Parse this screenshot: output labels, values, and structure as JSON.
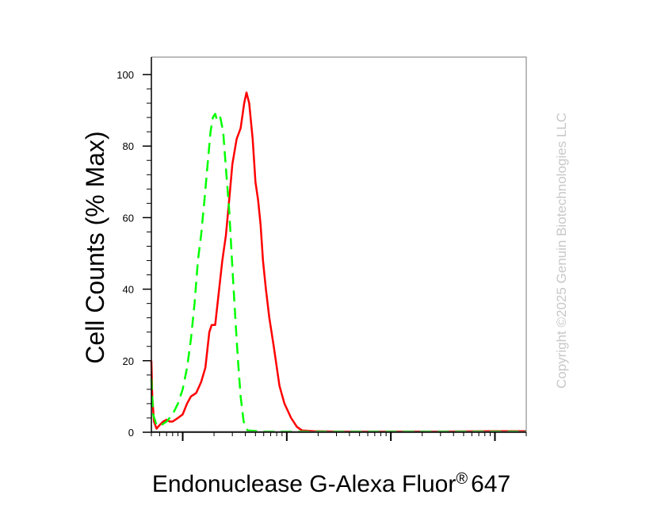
{
  "chart_data": {
    "type": "line",
    "xlabel": "Endonuclease G-Alexa Fluor",
    "xlabel_superscript": "®",
    "xlabel_suffix": "647",
    "ylabel": "Cell Counts (% Max)",
    "ylim": [
      0,
      100
    ],
    "yticks": [
      "0",
      "20",
      "40",
      "60",
      "80",
      "100"
    ],
    "xscale": "log",
    "xlim": [
      0.5,
      2000
    ],
    "grid": false,
    "series": [
      {
        "color": "#ff0000",
        "style": "solid",
        "points": [
          [
            0.5,
            20
          ],
          [
            0.51,
            10
          ],
          [
            0.53,
            3
          ],
          [
            0.56,
            1
          ],
          [
            0.6,
            2
          ],
          [
            0.65,
            3
          ],
          [
            0.7,
            3.5
          ],
          [
            0.75,
            3
          ],
          [
            0.8,
            3
          ],
          [
            0.85,
            3.5
          ],
          [
            0.9,
            4
          ],
          [
            1.0,
            5
          ],
          [
            1.1,
            8
          ],
          [
            1.2,
            10
          ],
          [
            1.35,
            11
          ],
          [
            1.5,
            14
          ],
          [
            1.65,
            18
          ],
          [
            1.8,
            28
          ],
          [
            1.9,
            30
          ],
          [
            2.05,
            30
          ],
          [
            2.2,
            38
          ],
          [
            2.4,
            48
          ],
          [
            2.6,
            55
          ],
          [
            2.8,
            65
          ],
          [
            3.0,
            75
          ],
          [
            3.3,
            82
          ],
          [
            3.6,
            85
          ],
          [
            3.9,
            92
          ],
          [
            4.1,
            95
          ],
          [
            4.35,
            92
          ],
          [
            4.7,
            82
          ],
          [
            5.0,
            70
          ],
          [
            5.3,
            65
          ],
          [
            5.6,
            58
          ],
          [
            5.9,
            48
          ],
          [
            6.3,
            40
          ],
          [
            6.8,
            32
          ],
          [
            7.5,
            24
          ],
          [
            8.5,
            13
          ],
          [
            9.5,
            8
          ],
          [
            11,
            4
          ],
          [
            12.5,
            1.5
          ],
          [
            14,
            0.5
          ],
          [
            18,
            0.3
          ],
          [
            30,
            0.2
          ],
          [
            100,
            0.2
          ],
          [
            300,
            0.2
          ],
          [
            1000,
            0.3
          ],
          [
            2000,
            0.3
          ]
        ]
      },
      {
        "color": "#00ff00",
        "style": "dashed",
        "points": [
          [
            0.5,
            15
          ],
          [
            0.52,
            5
          ],
          [
            0.56,
            2
          ],
          [
            0.62,
            2
          ],
          [
            0.7,
            3
          ],
          [
            0.8,
            5
          ],
          [
            0.9,
            8
          ],
          [
            1.0,
            12
          ],
          [
            1.1,
            18
          ],
          [
            1.2,
            26
          ],
          [
            1.3,
            36
          ],
          [
            1.4,
            48
          ],
          [
            1.5,
            55
          ],
          [
            1.62,
            65
          ],
          [
            1.75,
            76
          ],
          [
            1.85,
            84
          ],
          [
            1.95,
            88
          ],
          [
            2.05,
            89
          ],
          [
            2.15,
            87
          ],
          [
            2.3,
            88
          ],
          [
            2.45,
            84
          ],
          [
            2.6,
            74
          ],
          [
            2.8,
            62
          ],
          [
            3.0,
            46
          ],
          [
            3.2,
            32
          ],
          [
            3.4,
            20
          ],
          [
            3.6,
            10
          ],
          [
            3.85,
            3
          ],
          [
            4.2,
            0.5
          ],
          [
            6,
            0.2
          ],
          [
            20,
            0.2
          ],
          [
            60,
            0.2
          ],
          [
            2000,
            0.2
          ]
        ]
      }
    ]
  },
  "watermark": "Copyright ©2025 Genuin Biotechnologies LLC"
}
